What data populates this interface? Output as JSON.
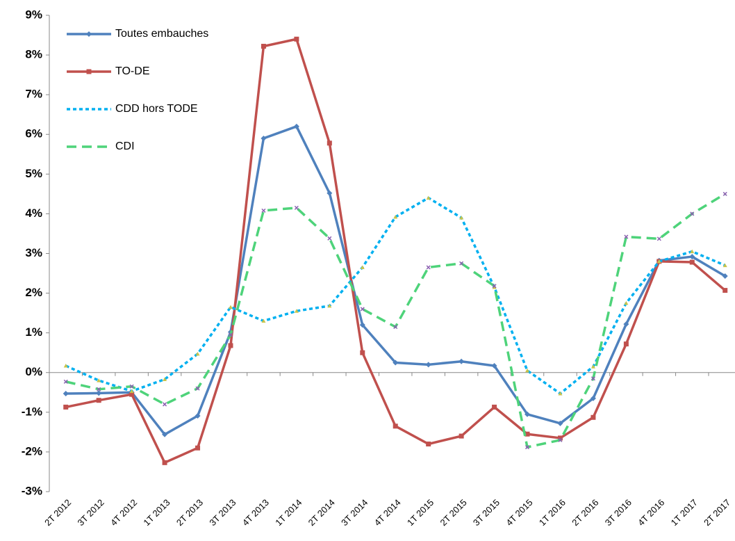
{
  "chart_data": {
    "type": "line",
    "categories": [
      "2T 2012",
      "3T 2012",
      "4T 2012",
      "1T 2013",
      "2T 2013",
      "3T 2013",
      "4T 2013",
      "1T 2014",
      "2T 2014",
      "3T 2014",
      "4T 2014",
      "1T 2015",
      "2T 2015",
      "3T 2015",
      "4T 2015",
      "1T 2016",
      "2T 2016",
      "3T 2016",
      "4T 2016",
      "1T 2017",
      "2T 2017"
    ],
    "series": [
      {
        "name": "Toutes embauches",
        "color": "#4f81bd",
        "dash": "solid",
        "marker": "diamond",
        "values": [
          -0.53,
          -0.52,
          -0.5,
          -1.56,
          -1.09,
          1.02,
          5.9,
          6.2,
          4.52,
          1.2,
          0.25,
          0.2,
          0.28,
          0.17,
          -1.05,
          -1.28,
          -0.65,
          1.22,
          2.82,
          2.92,
          2.43
        ]
      },
      {
        "name": "TO-DE",
        "color": "#c0504d",
        "dash": "solid",
        "marker": "square",
        "values": [
          -0.87,
          -0.7,
          -0.55,
          -2.27,
          -1.9,
          0.68,
          8.22,
          8.4,
          5.78,
          0.5,
          -1.35,
          -1.8,
          -1.6,
          -0.87,
          -1.55,
          -1.65,
          -1.13,
          0.72,
          2.8,
          2.78,
          2.07
        ]
      },
      {
        "name": "CDD hors TODE",
        "color": "#00b0f0",
        "dash": "short",
        "marker": "triangle",
        "values": [
          0.17,
          -0.2,
          -0.47,
          -0.17,
          0.47,
          1.65,
          1.3,
          1.55,
          1.68,
          2.65,
          3.92,
          4.4,
          3.9,
          2.15,
          0.05,
          -0.53,
          0.15,
          1.75,
          2.8,
          3.05,
          2.7
        ]
      },
      {
        "name": "CDI",
        "color": "#4ed37a",
        "dash": "long",
        "marker": "x",
        "values": [
          -0.23,
          -0.42,
          -0.35,
          -0.8,
          -0.4,
          0.95,
          4.08,
          4.15,
          3.38,
          1.6,
          1.15,
          2.65,
          2.75,
          2.18,
          -1.88,
          -1.7,
          -0.15,
          3.42,
          3.37,
          4.0,
          4.5
        ]
      }
    ],
    "ylim": [
      -3,
      9
    ],
    "yticks": [
      {
        "value": -3,
        "label": "-3%"
      },
      {
        "value": -2,
        "label": "-2%"
      },
      {
        "value": -1,
        "label": "-1%"
      },
      {
        "value": 0,
        "label": "0%"
      },
      {
        "value": 1,
        "label": "1%"
      },
      {
        "value": 2,
        "label": "2%"
      },
      {
        "value": 3,
        "label": "3%"
      },
      {
        "value": 4,
        "label": "4%"
      },
      {
        "value": 5,
        "label": "5%"
      },
      {
        "value": 6,
        "label": "6%"
      },
      {
        "value": 7,
        "label": "7%"
      },
      {
        "value": 8,
        "label": "8%"
      },
      {
        "value": 9,
        "label": "9%"
      }
    ],
    "grid": false,
    "legend": "upper left"
  }
}
